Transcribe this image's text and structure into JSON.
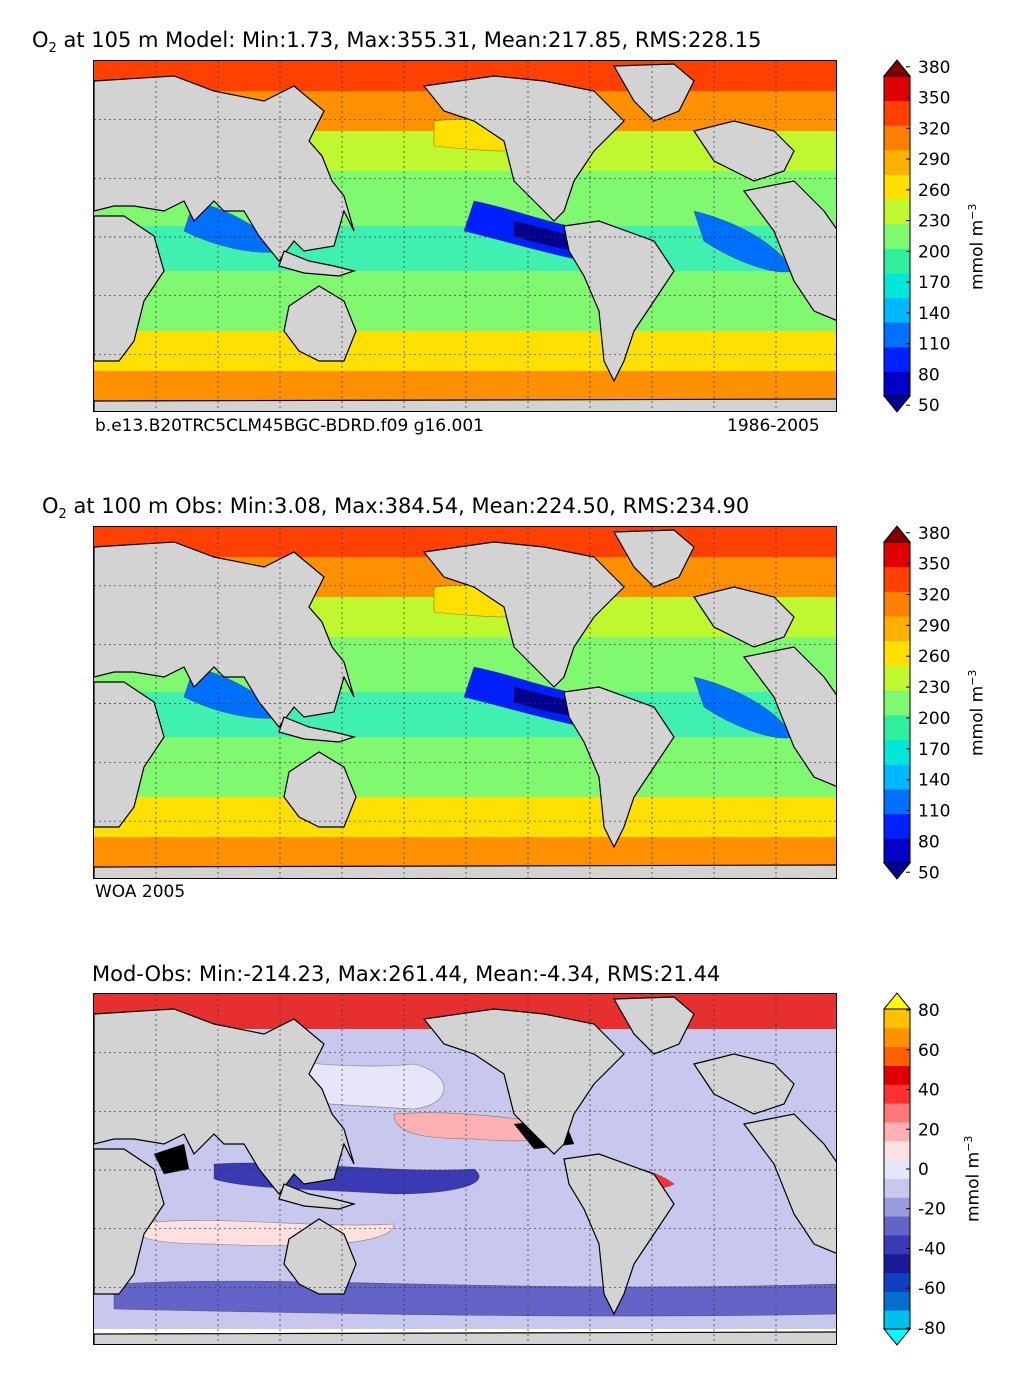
{
  "chart_data": [
    {
      "type": "heatmap",
      "title_prefix": "O",
      "title_sub": "2",
      "title_rest": " at 105 m Model: Min:1.73, Max:355.31, Mean:217.85, RMS:228.15",
      "stats": {
        "min": 1.73,
        "max": 355.31,
        "mean": 217.85,
        "rms": 228.15
      },
      "footer_left": "b.e13.B20TRC5CLM45BGC-BDRD.f09 g16.001",
      "footer_right": "1986-2005",
      "colorbar": {
        "ticks": [
          "50",
          "80",
          "110",
          "140",
          "170",
          "200",
          "230",
          "260",
          "290",
          "320",
          "350",
          "380"
        ],
        "unit": "mmol m",
        "unit_exp": "−3",
        "colors": [
          "#00008f",
          "#0000c8",
          "#0020ff",
          "#0070ff",
          "#00b8ff",
          "#00e6d8",
          "#30f0a0",
          "#80f870",
          "#c0f830",
          "#ffe000",
          "#ffb000",
          "#ff8000",
          "#ff4000",
          "#e00000",
          "#800000"
        ],
        "range": [
          35,
          395
        ]
      }
    },
    {
      "type": "heatmap",
      "title_prefix": "O",
      "title_sub": "2",
      "title_rest": " at 100 m Obs: Min:3.08, Max:384.54, Mean:224.50, RMS:234.90",
      "stats": {
        "min": 3.08,
        "max": 384.54,
        "mean": 224.5,
        "rms": 234.9
      },
      "footer_left": "WOA 2005",
      "colorbar": {
        "ticks": [
          "50",
          "80",
          "110",
          "140",
          "170",
          "200",
          "230",
          "260",
          "290",
          "320",
          "350",
          "380"
        ],
        "unit": "mmol m",
        "unit_exp": "−3",
        "colors": [
          "#00008f",
          "#0000c8",
          "#0020ff",
          "#0070ff",
          "#00b8ff",
          "#00e6d8",
          "#30f0a0",
          "#80f870",
          "#c0f830",
          "#ffe000",
          "#ffb000",
          "#ff8000",
          "#ff4000",
          "#e00000",
          "#800000"
        ],
        "range": [
          35,
          395
        ]
      }
    },
    {
      "type": "heatmap",
      "title": "Mod-Obs: Min:-214.23, Max:261.44, Mean:-4.34, RMS:21.44",
      "stats": {
        "min": -214.23,
        "max": 261.44,
        "mean": -4.34,
        "rms": 21.44
      },
      "colorbar": {
        "ticks": [
          "-80",
          "-60",
          "-40",
          "-20",
          "0",
          "20",
          "40",
          "60",
          "80"
        ],
        "unit": "mmol m",
        "unit_exp": "−3",
        "colors": [
          "#00ffff",
          "#00c0ee",
          "#0070cc",
          "#1040c0",
          "#1a1a99",
          "#3a3ab4",
          "#6464c8",
          "#9a9ade",
          "#c8c8ee",
          "#e6e6f8",
          "#ffe0e0",
          "#ffb0b0",
          "#ff7878",
          "#ff3030",
          "#e00000",
          "#ff6000",
          "#ff9000",
          "#ffc000",
          "#ffff00"
        ],
        "range": [
          -90,
          90
        ]
      }
    }
  ]
}
